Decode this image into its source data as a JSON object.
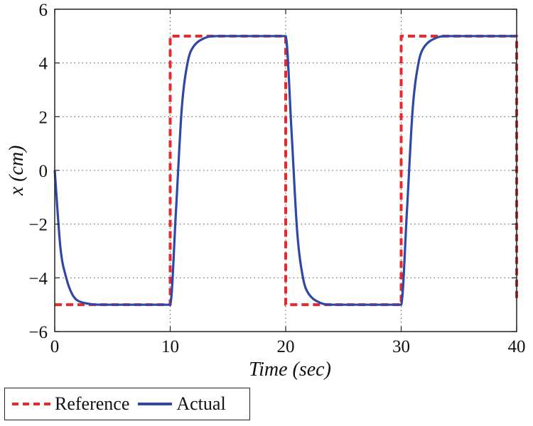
{
  "chart_data": {
    "type": "line",
    "title": "",
    "xlabel": "Time (sec)",
    "ylabel": "x (cm)",
    "xlim": [
      0,
      40
    ],
    "ylim": [
      -6,
      6
    ],
    "xticks": [
      0,
      10,
      20,
      30,
      40
    ],
    "yticks": [
      -6,
      -4,
      -2,
      0,
      2,
      4,
      6
    ],
    "ytick_labels": [
      "−6",
      "−4",
      "−2",
      "0",
      "2",
      "4",
      "6"
    ],
    "grid": true,
    "legend_position": "bottom-left",
    "series": [
      {
        "name": "Reference",
        "style": "dashed",
        "color": "#e8282b",
        "x": [
          0,
          10,
          10,
          20,
          20,
          30,
          30,
          40,
          40
        ],
        "y": [
          -5,
          -5,
          5,
          5,
          -5,
          -5,
          5,
          5,
          -4.8
        ]
      },
      {
        "name": "Actual",
        "style": "solid",
        "color": "#2f48a6",
        "x": [
          0,
          0.5,
          1,
          1.5,
          2,
          3,
          4,
          10,
          10.5,
          11,
          11.5,
          12,
          13,
          14,
          20,
          20.5,
          21,
          21.5,
          22,
          23,
          24,
          30,
          30.5,
          31,
          31.5,
          32,
          33,
          34,
          40
        ],
        "y": [
          0,
          -2.9,
          -4.0,
          -4.6,
          -4.85,
          -4.97,
          -5,
          -5,
          -1.5,
          2.3,
          4.0,
          4.6,
          4.93,
          5,
          5,
          1.5,
          -2.3,
          -4.0,
          -4.6,
          -4.93,
          -5,
          -5,
          -1.5,
          2.3,
          4.0,
          4.6,
          4.93,
          5,
          5
        ]
      }
    ]
  }
}
